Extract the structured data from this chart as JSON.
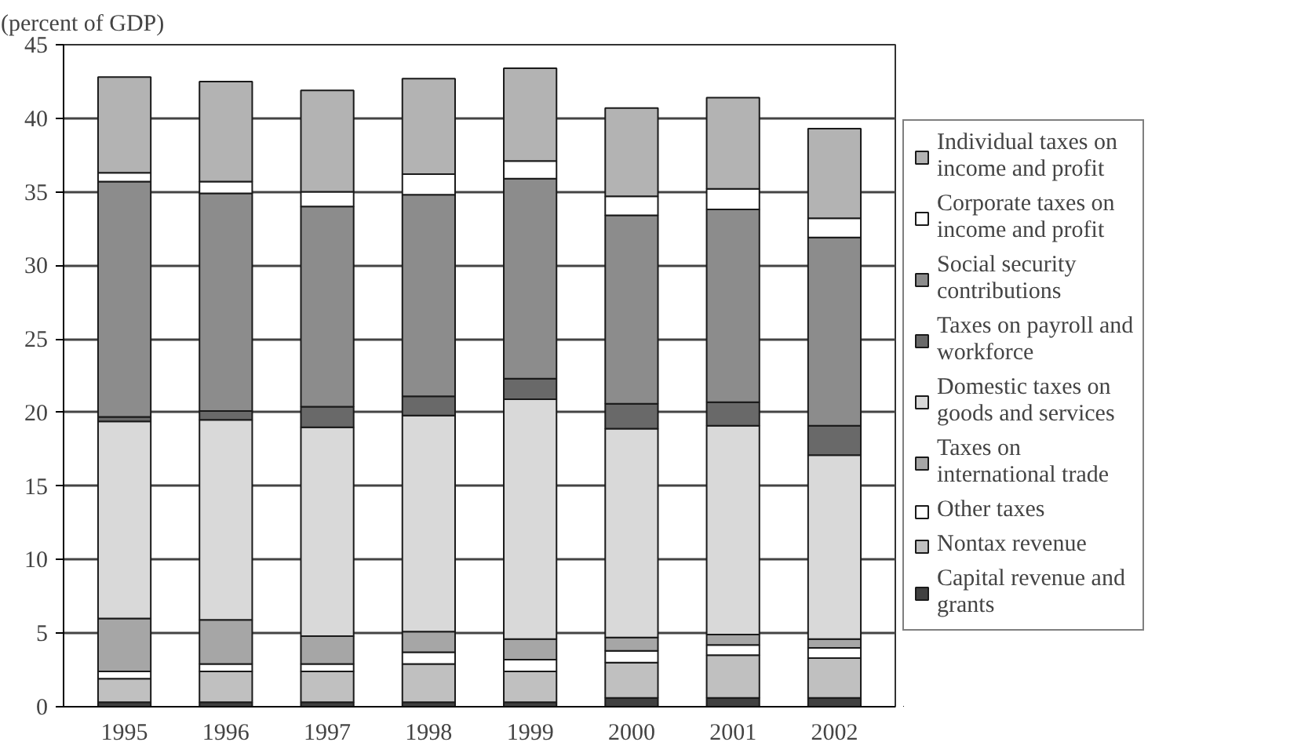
{
  "chart_data": {
    "type": "bar",
    "stacked": true,
    "ylabel": "(percent of GDP)",
    "categories": [
      "1995",
      "1996",
      "1997",
      "1998",
      "1999",
      "2000",
      "2001",
      "2002"
    ],
    "series": [
      {
        "name": "Capital revenue and grants",
        "color": "#404040",
        "values": [
          0.3,
          0.3,
          0.3,
          0.3,
          0.3,
          0.6,
          0.6,
          0.6
        ]
      },
      {
        "name": "Nontax revenue",
        "color": "#c0c0c0",
        "values": [
          1.6,
          2.1,
          2.1,
          2.6,
          2.1,
          2.4,
          2.9,
          2.7
        ]
      },
      {
        "name": "Other taxes",
        "color": "#ffffff",
        "values": [
          0.5,
          0.5,
          0.5,
          0.8,
          0.8,
          0.8,
          0.7,
          0.7
        ]
      },
      {
        "name": "Taxes on international trade",
        "color": "#a6a6a6",
        "values": [
          3.6,
          3.0,
          1.9,
          1.4,
          1.4,
          0.9,
          0.7,
          0.6
        ]
      },
      {
        "name": "Domestic taxes on goods and services",
        "color": "#d9d9d9",
        "values": [
          13.4,
          13.6,
          14.2,
          14.7,
          16.3,
          14.2,
          14.2,
          12.5
        ]
      },
      {
        "name": "Taxes on payroll and workforce",
        "color": "#696969",
        "values": [
          0.3,
          0.6,
          1.4,
          1.3,
          1.4,
          1.7,
          1.6,
          2.0
        ]
      },
      {
        "name": "Social security contributions",
        "color": "#8c8c8c",
        "values": [
          16.0,
          14.8,
          13.6,
          13.7,
          13.6,
          12.8,
          13.1,
          12.8
        ]
      },
      {
        "name": "Corporate taxes on income and profit",
        "color": "#ffffff",
        "values": [
          0.6,
          0.8,
          1.0,
          1.4,
          1.2,
          1.3,
          1.4,
          1.3
        ]
      },
      {
        "name": "Individual taxes on income and profit",
        "color": "#b3b3b3",
        "values": [
          6.5,
          6.8,
          6.9,
          6.5,
          6.3,
          6.0,
          6.2,
          6.1
        ]
      }
    ],
    "ylim": [
      0,
      45
    ],
    "yticks": [
      0,
      5,
      10,
      15,
      20,
      25,
      30,
      35,
      40,
      45
    ],
    "grid": "y",
    "legend": "right"
  }
}
